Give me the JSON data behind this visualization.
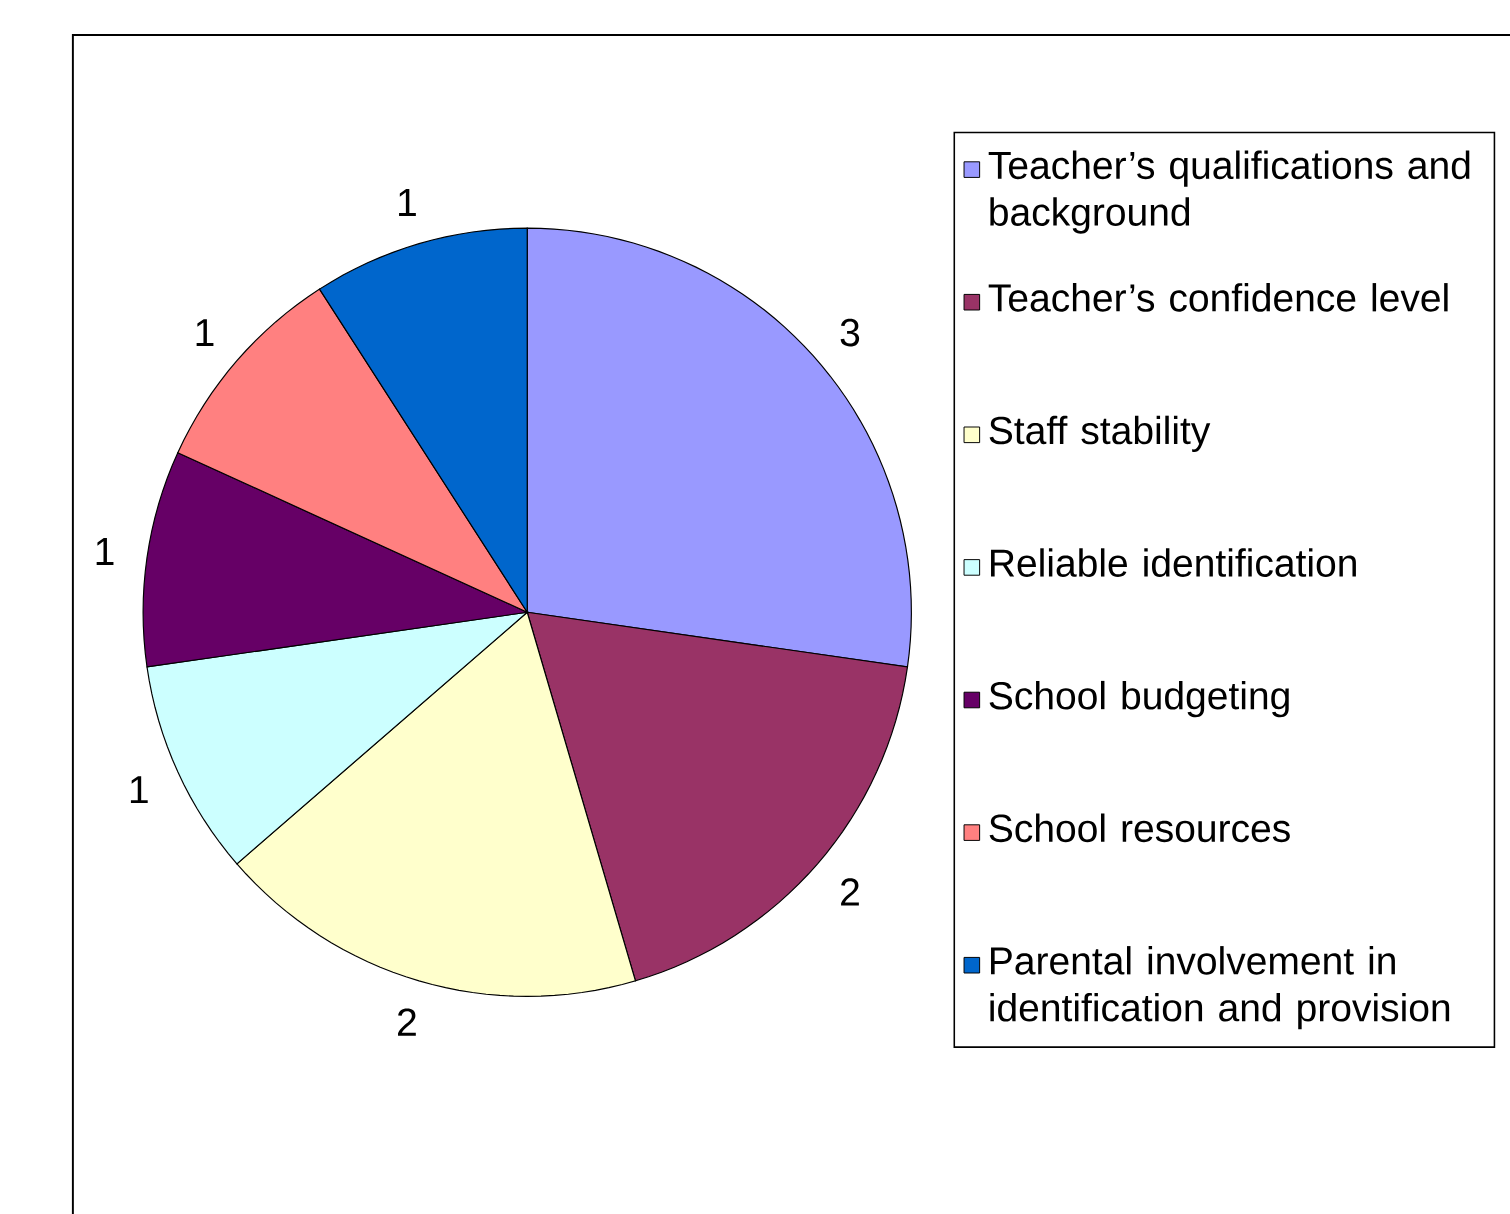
{
  "chart_data": {
    "type": "pie",
    "categories": [
      "Teacher’s qualifications and background",
      "Teacher’s confidence level",
      "Staff stability",
      "Reliable identification",
      "School budgeting",
      "School resources",
      "Parental involvement in identification and provision"
    ],
    "values": [
      3,
      2,
      2,
      1,
      1,
      1,
      1
    ],
    "colors": [
      "#9999ff",
      "#993366",
      "#ffffcc",
      "#ccffff",
      "#660066",
      "#ff8080",
      "#0066cc"
    ],
    "data_labels": true,
    "legend": "right"
  }
}
